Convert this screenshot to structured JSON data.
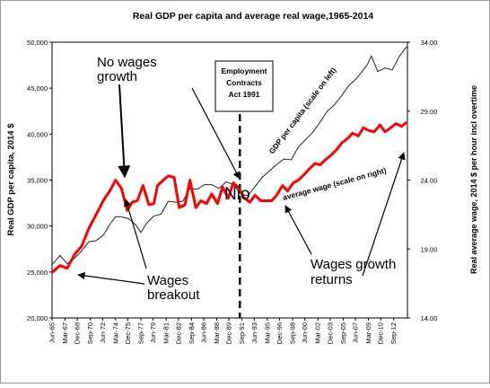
{
  "chart_data": {
    "type": "line",
    "title": "Real GDP per capita and average real wage,1965-2014",
    "ylabel_left": "Real GDP per capita, 2014 $",
    "ylabel_right": "Real average wage, 2014 $ per hour incl overtime",
    "ylim_left": [
      20000,
      50000
    ],
    "ylim_right": [
      14,
      34
    ],
    "yticks_left": [
      "20,000",
      "25,000",
      "30,000",
      "35,000",
      "40,000",
      "45,000",
      "50,000"
    ],
    "yticks_right": [
      "14.00",
      "19.00",
      "24.00",
      "29.00",
      "34.00"
    ],
    "xlim": [
      1965.4,
      2014.6
    ],
    "xticks": [
      "Jun-65",
      "Mar-67",
      "Dec-68",
      "Sep-70",
      "Jun-72",
      "Mar-74",
      "Dec-75",
      "Sep-77",
      "Jun-79",
      "Mar-81",
      "Dec-82",
      "Sep-84",
      "Jun-86",
      "Mar-88",
      "Dec-89",
      "Sep-91",
      "Jun-93",
      "Mar-95",
      "Dec-96",
      "Sep-98",
      "Jun-00",
      "Mar-02",
      "Dec-03",
      "Sep-05",
      "Jun-07",
      "Mar-09",
      "Dec-10",
      "Sep-12"
    ],
    "xtick_years": [
      1965.4,
      1967.2,
      1968.9,
      1970.7,
      1972.4,
      1974.2,
      1975.9,
      1977.7,
      1979.4,
      1981.2,
      1982.9,
      1984.7,
      1986.4,
      1988.2,
      1989.9,
      1991.7,
      1993.4,
      1995.2,
      1996.9,
      1998.7,
      2000.4,
      2002.2,
      2003.9,
      2005.7,
      2007.4,
      2009.2,
      2010.9,
      2012.7
    ],
    "series": [
      {
        "name": "GDP per capita (scale on left)",
        "axis": "left",
        "color": "#222222",
        "x": [
          1965.4,
          1966.5,
          1967.5,
          1968.5,
          1969.5,
          1970.5,
          1971.5,
          1972.5,
          1973.5,
          1974.2,
          1975.0,
          1976.0,
          1977.0,
          1977.7,
          1978.5,
          1979.5,
          1980.5,
          1981.5,
          1982.5,
          1983.5,
          1984.5,
          1985.5,
          1986.5,
          1987.5,
          1988.5,
          1989.5,
          1990.5,
          1991.5,
          1992.5,
          1993.5,
          1994.5,
          1995.5,
          1996.5,
          1997.5,
          1998.5,
          1999.5,
          2000.5,
          2001.5,
          2002.5,
          2003.5,
          2004.5,
          2005.5,
          2006.5,
          2007.5,
          2008.3,
          2009.0,
          2009.6,
          2010.5,
          2011.5,
          2012.5,
          2013.5,
          2014.5
        ],
        "y": [
          25800,
          26800,
          25900,
          26500,
          27300,
          28300,
          28400,
          29000,
          30300,
          31000,
          31000,
          30800,
          30100,
          29300,
          30300,
          31100,
          31300,
          32700,
          32600,
          32700,
          34100,
          34000,
          34500,
          34500,
          34100,
          34800,
          34500,
          33500,
          33300,
          34300,
          35300,
          36000,
          36700,
          37300,
          37200,
          38600,
          39400,
          40200,
          41300,
          42500,
          43200,
          44200,
          45300,
          46000,
          46800,
          47500,
          48500,
          46800,
          47200,
          47000,
          48500,
          49500
        ]
      },
      {
        "name": "Average wage (scale on right)",
        "axis": "right",
        "color": "#ff0000",
        "x": [
          1965.4,
          1966.5,
          1967.5,
          1968.5,
          1969.5,
          1970.5,
          1971.5,
          1972.5,
          1973.5,
          1974.2,
          1975.0,
          1975.8,
          1976.5,
          1977.2,
          1978.0,
          1978.8,
          1979.5,
          1980.0,
          1980.8,
          1981.5,
          1982.3,
          1983.0,
          1983.8,
          1984.5,
          1985.3,
          1986.0,
          1986.8,
          1987.5,
          1988.3,
          1989.0,
          1989.8,
          1990.5,
          1991.3,
          1992.0,
          1992.8,
          1993.5,
          1994.3,
          1995.0,
          1995.8,
          1996.5,
          1997.3,
          1998.0,
          1998.8,
          1999.5,
          2000.3,
          2001.0,
          2001.8,
          2002.5,
          2003.3,
          2004.0,
          2004.8,
          2005.5,
          2006.3,
          2007.0,
          2007.8,
          2008.5,
          2009.2,
          2010.0,
          2010.8,
          2011.5,
          2012.3,
          2013.0,
          2013.8,
          2014.5
        ],
        "y": [
          17.3,
          17.8,
          17.6,
          18.6,
          19.2,
          20.5,
          21.5,
          22.5,
          23.3,
          24.0,
          23.4,
          21.8,
          22.4,
          22.5,
          23.6,
          22.2,
          22.3,
          23.6,
          24.0,
          24.3,
          24.2,
          22.0,
          22.2,
          24.0,
          22.0,
          22.5,
          22.3,
          23.0,
          22.3,
          23.5,
          22.7,
          23.8,
          23.4,
          22.7,
          22.4,
          22.9,
          22.5,
          22.5,
          22.5,
          22.9,
          23.6,
          23.2,
          23.8,
          24.0,
          24.4,
          24.8,
          25.2,
          25.1,
          25.5,
          25.8,
          26.2,
          26.7,
          27.0,
          27.4,
          27.2,
          27.8,
          27.6,
          27.5,
          28.0,
          27.5,
          27.8,
          28.1,
          27.9,
          28.2
        ]
      }
    ],
    "event_line": {
      "x": 1991.4,
      "label": [
        "Employment",
        "Contracts",
        "Act 1991"
      ]
    },
    "inline_labels": {
      "gdp": "GDP per capita (scale on left)",
      "wage": "average wage (scale on right)"
    },
    "annotations": [
      {
        "text": [
          "No wages",
          "growth"
        ]
      },
      {
        "text": [
          "Wages",
          "breakout"
        ]
      },
      {
        "text": [
          "Wages growth",
          "returns"
        ]
      },
      {
        "text": [
          "Nio"
        ]
      }
    ]
  }
}
